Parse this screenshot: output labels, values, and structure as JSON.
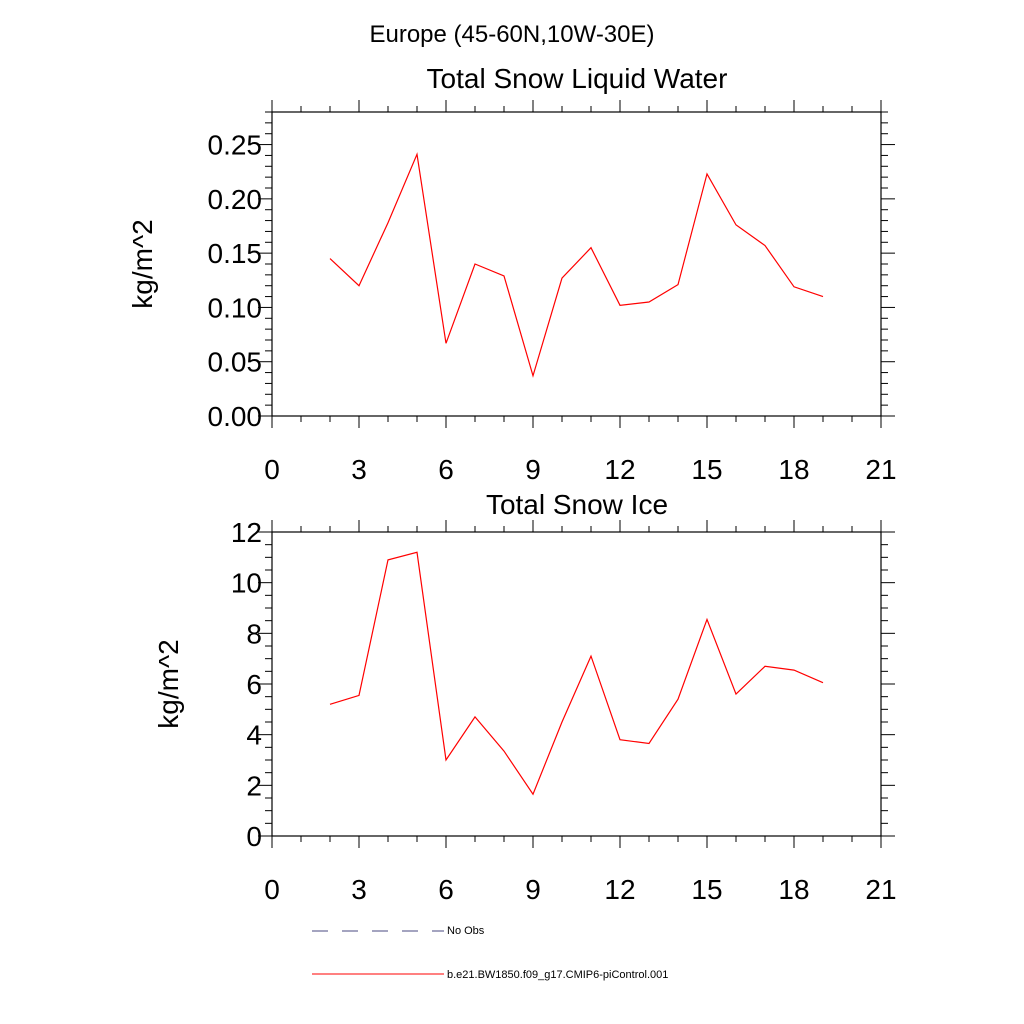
{
  "figure": {
    "main_title": "Europe (45-60N,10W-30E)"
  },
  "chart_data": [
    {
      "type": "line",
      "title": "Total Snow Liquid Water",
      "ylabel": "kg/m^2",
      "xlabel": "",
      "xlim": [
        0,
        21
      ],
      "ylim": [
        0,
        0.28
      ],
      "x_ticks": [
        0,
        3,
        6,
        9,
        12,
        15,
        18,
        21
      ],
      "x_tick_labels": [
        "0",
        "3",
        "6",
        "9",
        "12",
        "15",
        "18",
        "21"
      ],
      "y_ticks": [
        0,
        0.05,
        0.1,
        0.15,
        0.2,
        0.25
      ],
      "y_tick_labels": [
        "0.00",
        "0.05",
        "0.10",
        "0.15",
        "0.20",
        "0.25"
      ],
      "y_minor_step": 0.01,
      "x": [
        2,
        3,
        4,
        5,
        6,
        7,
        8,
        9,
        10,
        11,
        12,
        13,
        14,
        15,
        16,
        17,
        18,
        19
      ],
      "series": [
        {
          "name": "b.e21.BW1850.f09_g17.CMIP6-piControl.001",
          "color": "#ff0000",
          "values": [
            0.145,
            0.12,
            0.178,
            0.241,
            0.067,
            0.14,
            0.129,
            0.037,
            0.127,
            0.155,
            0.102,
            0.105,
            0.121,
            0.223,
            0.176,
            0.157,
            0.119,
            0.11
          ]
        }
      ],
      "grid": false,
      "legend": "none"
    },
    {
      "type": "line",
      "title": "Total Snow Ice",
      "ylabel": "kg/m^2",
      "xlabel": "",
      "xlim": [
        0,
        21
      ],
      "ylim": [
        0,
        12
      ],
      "x_ticks": [
        0,
        3,
        6,
        9,
        12,
        15,
        18,
        21
      ],
      "x_tick_labels": [
        "0",
        "3",
        "6",
        "9",
        "12",
        "15",
        "18",
        "21"
      ],
      "y_ticks": [
        0,
        2,
        4,
        6,
        8,
        10,
        12
      ],
      "y_tick_labels": [
        "0",
        "2",
        "4",
        "6",
        "8",
        "10",
        "12"
      ],
      "y_minor_step": 0.5,
      "x": [
        2,
        3,
        4,
        5,
        6,
        7,
        8,
        9,
        10,
        11,
        12,
        13,
        14,
        15,
        16,
        17,
        18,
        19
      ],
      "series": [
        {
          "name": "b.e21.BW1850.f09_g17.CMIP6-piControl.001",
          "color": "#ff0000",
          "values": [
            5.2,
            5.55,
            10.9,
            11.2,
            3.0,
            4.7,
            3.35,
            1.65,
            4.5,
            7.1,
            3.8,
            3.65,
            5.4,
            8.55,
            5.6,
            6.7,
            6.55,
            6.05
          ]
        }
      ],
      "grid": false,
      "legend": "none"
    }
  ],
  "legend": {
    "placement": "bottom",
    "entries": [
      {
        "label": "No Obs",
        "color": "#4a4a80",
        "style": "dashed"
      },
      {
        "label": "b.e21.BW1850.f09_g17.CMIP6-piControl.001",
        "color": "#ff0000",
        "style": "solid"
      }
    ]
  }
}
